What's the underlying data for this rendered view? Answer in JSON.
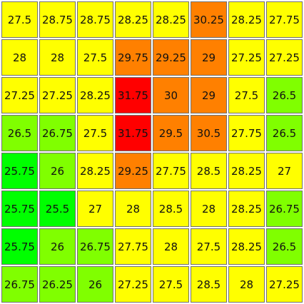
{
  "colors": {
    "yellow": "#ffff00",
    "orange": "#ff8000",
    "red": "#ff0000",
    "lime": "#80ff00",
    "green": "#00ff00"
  },
  "grid": [
    [
      {
        "value": "27.5",
        "color": "yellow"
      },
      {
        "value": "28.75",
        "color": "yellow"
      },
      {
        "value": "28.75",
        "color": "yellow"
      },
      {
        "value": "28.25",
        "color": "yellow"
      },
      {
        "value": "28.25",
        "color": "yellow"
      },
      {
        "value": "30.25",
        "color": "orange"
      },
      {
        "value": "28.25",
        "color": "yellow"
      },
      {
        "value": "27.75",
        "color": "yellow"
      }
    ],
    [
      {
        "value": "28",
        "color": "yellow"
      },
      {
        "value": "28",
        "color": "yellow"
      },
      {
        "value": "27.5",
        "color": "yellow"
      },
      {
        "value": "29.75",
        "color": "orange"
      },
      {
        "value": "29.25",
        "color": "orange"
      },
      {
        "value": "29",
        "color": "orange"
      },
      {
        "value": "27.25",
        "color": "yellow"
      },
      {
        "value": "27.25",
        "color": "yellow"
      }
    ],
    [
      {
        "value": "27.25",
        "color": "yellow"
      },
      {
        "value": "27.25",
        "color": "yellow"
      },
      {
        "value": "28.25",
        "color": "yellow"
      },
      {
        "value": "31.75",
        "color": "red"
      },
      {
        "value": "30",
        "color": "orange"
      },
      {
        "value": "29",
        "color": "orange"
      },
      {
        "value": "27.5",
        "color": "yellow"
      },
      {
        "value": "26.5",
        "color": "lime"
      }
    ],
    [
      {
        "value": "26.5",
        "color": "lime"
      },
      {
        "value": "26.75",
        "color": "lime"
      },
      {
        "value": "27.5",
        "color": "yellow"
      },
      {
        "value": "31.75",
        "color": "red"
      },
      {
        "value": "29.5",
        "color": "orange"
      },
      {
        "value": "30.5",
        "color": "orange"
      },
      {
        "value": "27.75",
        "color": "yellow"
      },
      {
        "value": "26.5",
        "color": "lime"
      }
    ],
    [
      {
        "value": "25.75",
        "color": "green"
      },
      {
        "value": "26",
        "color": "lime"
      },
      {
        "value": "28.25",
        "color": "yellow"
      },
      {
        "value": "29.25",
        "color": "orange"
      },
      {
        "value": "27.75",
        "color": "yellow"
      },
      {
        "value": "28.5",
        "color": "yellow"
      },
      {
        "value": "28.25",
        "color": "yellow"
      },
      {
        "value": "27",
        "color": "yellow"
      }
    ],
    [
      {
        "value": "25.75",
        "color": "green"
      },
      {
        "value": "25.5",
        "color": "green"
      },
      {
        "value": "27",
        "color": "yellow"
      },
      {
        "value": "28",
        "color": "yellow"
      },
      {
        "value": "28.5",
        "color": "yellow"
      },
      {
        "value": "28",
        "color": "yellow"
      },
      {
        "value": "28.25",
        "color": "yellow"
      },
      {
        "value": "26.75",
        "color": "lime"
      }
    ],
    [
      {
        "value": "25.75",
        "color": "green"
      },
      {
        "value": "26",
        "color": "lime"
      },
      {
        "value": "26.75",
        "color": "lime"
      },
      {
        "value": "27.75",
        "color": "yellow"
      },
      {
        "value": "28",
        "color": "yellow"
      },
      {
        "value": "27.5",
        "color": "yellow"
      },
      {
        "value": "28.25",
        "color": "yellow"
      },
      {
        "value": "26.5",
        "color": "lime"
      }
    ],
    [
      {
        "value": "26.75",
        "color": "lime"
      },
      {
        "value": "26.25",
        "color": "lime"
      },
      {
        "value": "26",
        "color": "lime"
      },
      {
        "value": "27.25",
        "color": "yellow"
      },
      {
        "value": "27.5",
        "color": "yellow"
      },
      {
        "value": "28.5",
        "color": "yellow"
      },
      {
        "value": "28",
        "color": "yellow"
      },
      {
        "value": "27.25",
        "color": "yellow"
      }
    ]
  ]
}
